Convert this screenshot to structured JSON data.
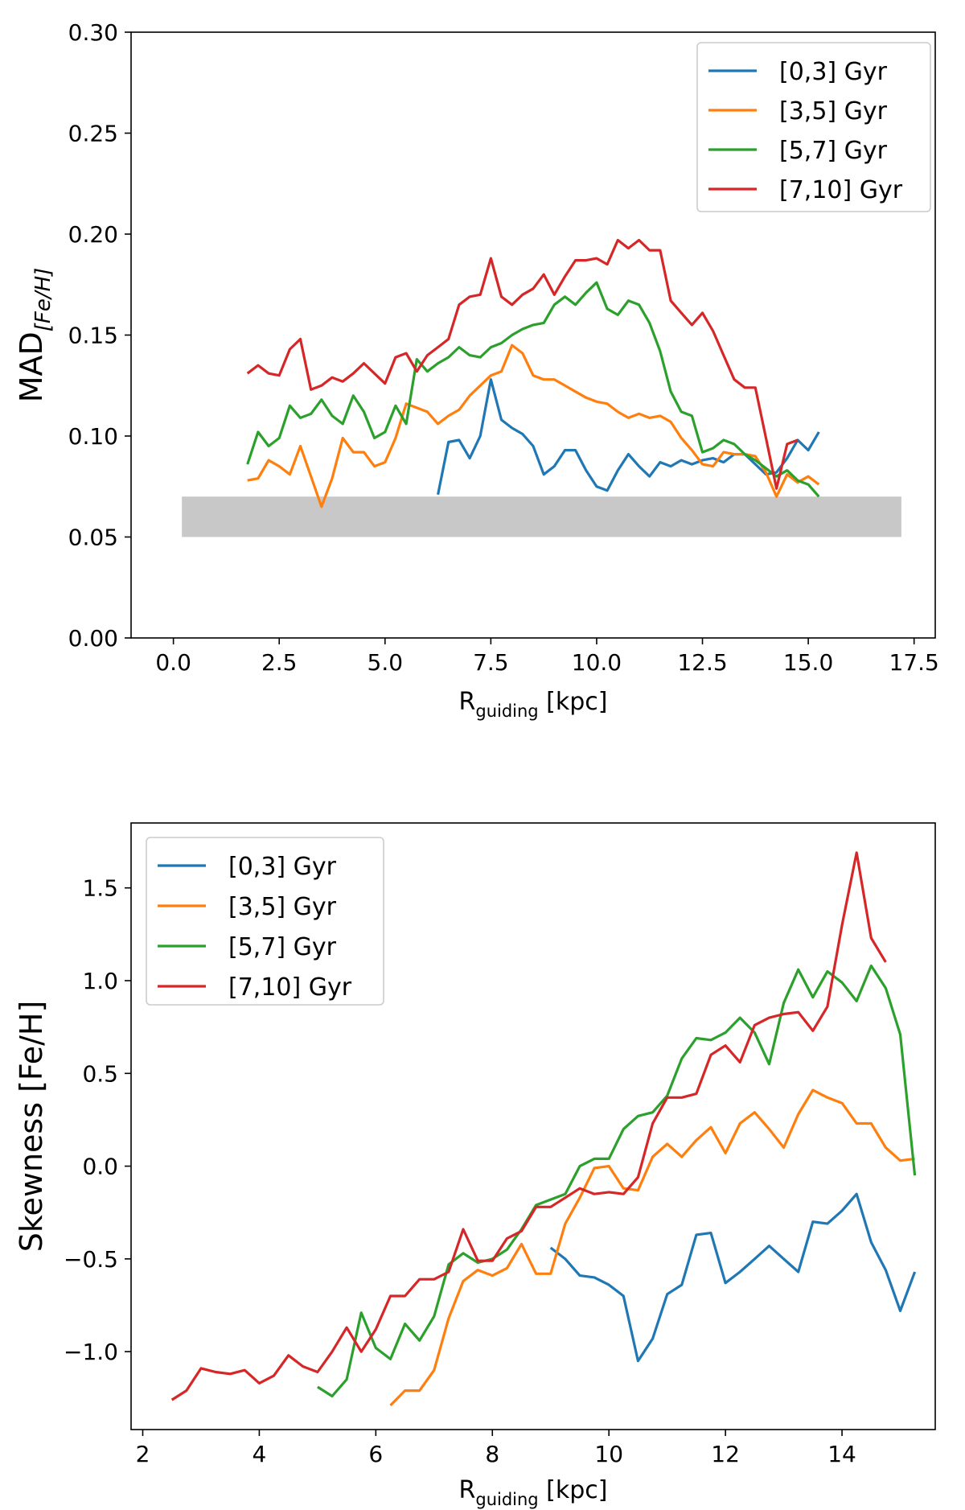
{
  "chart_data": [
    {
      "type": "line",
      "id": "mad",
      "xlabel": "R",
      "xlabel_sub": "guiding",
      "xlabel_suffix": " [kpc]",
      "ylabel": "MAD",
      "ylabel_sub": "[Fe/H]",
      "xlim": [
        -1.0,
        18.0
      ],
      "ylim": [
        0.0,
        0.3
      ],
      "xticks": [
        0.0,
        2.5,
        5.0,
        7.5,
        10.0,
        12.5,
        15.0,
        17.5
      ],
      "xtick_labels": [
        "0.0",
        "2.5",
        "5.0",
        "7.5",
        "10.0",
        "12.5",
        "15.0",
        "17.5"
      ],
      "yticks": [
        0.0,
        0.05,
        0.1,
        0.15,
        0.2,
        0.25,
        0.3
      ],
      "ytick_labels": [
        "0.00",
        "0.05",
        "0.10",
        "0.15",
        "0.20",
        "0.25",
        "0.30"
      ],
      "legend_position": "top-right",
      "band": {
        "x0": 0.2,
        "x1": 17.2,
        "y0": 0.05,
        "y1": 0.07,
        "color": "#c8c8c8"
      },
      "series": [
        {
          "name": "[0,3] Gyr",
          "color": "#1f77b4",
          "x": [
            6.25,
            6.5,
            6.75,
            7.0,
            7.25,
            7.5,
            7.75,
            8.0,
            8.25,
            8.5,
            8.75,
            9.0,
            9.25,
            9.5,
            9.75,
            10.0,
            10.25,
            10.5,
            10.75,
            11.0,
            11.25,
            11.5,
            11.75,
            12.0,
            12.25,
            12.5,
            12.75,
            13.0,
            13.25,
            13.5,
            13.75,
            14.0,
            14.25,
            14.5,
            14.75,
            15.0,
            15.25
          ],
          "y": [
            0.071,
            0.097,
            0.098,
            0.089,
            0.1,
            0.128,
            0.108,
            0.104,
            0.101,
            0.095,
            0.081,
            0.085,
            0.093,
            0.093,
            0.083,
            0.075,
            0.073,
            0.083,
            0.091,
            0.085,
            0.08,
            0.087,
            0.085,
            0.088,
            0.086,
            0.088,
            0.089,
            0.087,
            0.091,
            0.091,
            0.086,
            0.081,
            0.082,
            0.089,
            0.098,
            0.093,
            0.102
          ]
        },
        {
          "name": "[3,5] Gyr",
          "color": "#ff7f0e",
          "x": [
            1.75,
            2.0,
            2.25,
            2.5,
            2.75,
            3.0,
            3.25,
            3.5,
            3.75,
            4.0,
            4.25,
            4.5,
            4.75,
            5.0,
            5.25,
            5.5,
            5.75,
            6.0,
            6.25,
            6.5,
            6.75,
            7.0,
            7.25,
            7.5,
            7.75,
            8.0,
            8.25,
            8.5,
            8.75,
            9.0,
            9.25,
            9.5,
            9.75,
            10.0,
            10.25,
            10.5,
            10.75,
            11.0,
            11.25,
            11.5,
            11.75,
            12.0,
            12.25,
            12.5,
            12.75,
            13.0,
            13.25,
            13.5,
            13.75,
            14.0,
            14.25,
            14.5,
            14.75,
            15.0,
            15.25
          ],
          "y": [
            0.078,
            0.079,
            0.088,
            0.085,
            0.081,
            0.095,
            0.08,
            0.065,
            0.079,
            0.099,
            0.092,
            0.092,
            0.085,
            0.087,
            0.099,
            0.116,
            0.114,
            0.112,
            0.106,
            0.11,
            0.113,
            0.12,
            0.125,
            0.13,
            0.132,
            0.145,
            0.141,
            0.13,
            0.128,
            0.128,
            0.125,
            0.122,
            0.119,
            0.117,
            0.116,
            0.112,
            0.109,
            0.111,
            0.109,
            0.11,
            0.107,
            0.099,
            0.093,
            0.086,
            0.085,
            0.092,
            0.091,
            0.091,
            0.09,
            0.082,
            0.07,
            0.081,
            0.077,
            0.08,
            0.076
          ]
        },
        {
          "name": "[5,7] Gyr",
          "color": "#2ca02c",
          "x": [
            1.75,
            2.0,
            2.25,
            2.5,
            2.75,
            3.0,
            3.25,
            3.5,
            3.75,
            4.0,
            4.25,
            4.5,
            4.75,
            5.0,
            5.25,
            5.5,
            5.75,
            6.0,
            6.25,
            6.5,
            6.75,
            7.0,
            7.25,
            7.5,
            7.75,
            8.0,
            8.25,
            8.5,
            8.75,
            9.0,
            9.25,
            9.5,
            9.75,
            10.0,
            10.25,
            10.5,
            10.75,
            11.0,
            11.25,
            11.5,
            11.75,
            12.0,
            12.25,
            12.5,
            12.75,
            13.0,
            13.25,
            13.5,
            13.75,
            14.0,
            14.25,
            14.5,
            14.75,
            15.0,
            15.25
          ],
          "y": [
            0.086,
            0.102,
            0.095,
            0.099,
            0.115,
            0.109,
            0.111,
            0.118,
            0.11,
            0.106,
            0.12,
            0.112,
            0.099,
            0.102,
            0.115,
            0.106,
            0.138,
            0.132,
            0.136,
            0.139,
            0.144,
            0.14,
            0.139,
            0.144,
            0.146,
            0.15,
            0.153,
            0.155,
            0.156,
            0.165,
            0.169,
            0.165,
            0.171,
            0.176,
            0.163,
            0.16,
            0.167,
            0.165,
            0.156,
            0.142,
            0.122,
            0.112,
            0.11,
            0.092,
            0.094,
            0.098,
            0.096,
            0.091,
            0.088,
            0.084,
            0.08,
            0.083,
            0.078,
            0.076,
            0.07
          ]
        },
        {
          "name": "[7,10] Gyr",
          "color": "#d62728",
          "x": [
            1.75,
            2.0,
            2.25,
            2.5,
            2.75,
            3.0,
            3.25,
            3.5,
            3.75,
            4.0,
            4.25,
            4.5,
            4.75,
            5.0,
            5.25,
            5.5,
            5.75,
            6.0,
            6.25,
            6.5,
            6.75,
            7.0,
            7.25,
            7.5,
            7.75,
            8.0,
            8.25,
            8.5,
            8.75,
            9.0,
            9.25,
            9.5,
            9.75,
            10.0,
            10.25,
            10.5,
            10.75,
            11.0,
            11.25,
            11.5,
            11.75,
            12.0,
            12.25,
            12.5,
            12.75,
            13.0,
            13.25,
            13.5,
            13.75,
            14.0,
            14.25,
            14.5,
            14.75
          ],
          "y": [
            0.131,
            0.135,
            0.131,
            0.13,
            0.143,
            0.148,
            0.123,
            0.125,
            0.129,
            0.127,
            0.131,
            0.136,
            0.131,
            0.126,
            0.139,
            0.141,
            0.132,
            0.14,
            0.144,
            0.148,
            0.165,
            0.169,
            0.17,
            0.188,
            0.169,
            0.165,
            0.17,
            0.173,
            0.18,
            0.17,
            0.179,
            0.187,
            0.187,
            0.188,
            0.185,
            0.197,
            0.193,
            0.197,
            0.192,
            0.192,
            0.167,
            0.161,
            0.155,
            0.161,
            0.152,
            0.14,
            0.128,
            0.124,
            0.124,
            0.099,
            0.074,
            0.096,
            0.098
          ]
        }
      ]
    },
    {
      "type": "line",
      "id": "skewness",
      "xlabel": "R",
      "xlabel_sub": "guiding",
      "xlabel_suffix": " [kpc]",
      "ylabel": "Skewness [Fe/H]",
      "xlim": [
        1.8,
        15.6
      ],
      "ylim": [
        -1.42,
        1.85
      ],
      "xticks": [
        2,
        4,
        6,
        8,
        10,
        12,
        14
      ],
      "xtick_labels": [
        "2",
        "4",
        "6",
        "8",
        "10",
        "12",
        "14"
      ],
      "yticks": [
        -1.0,
        -0.5,
        0.0,
        0.5,
        1.0,
        1.5
      ],
      "ytick_labels": [
        "−1.0",
        "−0.5",
        "0.0",
        "0.5",
        "1.0",
        "1.5"
      ],
      "legend_position": "top-left",
      "series": [
        {
          "name": "[0,3] Gyr",
          "color": "#1f77b4",
          "x": [
            9.0,
            9.25,
            9.5,
            9.75,
            10.0,
            10.25,
            10.5,
            10.75,
            11.0,
            11.25,
            11.5,
            11.75,
            12.0,
            12.25,
            12.5,
            12.75,
            13.0,
            13.25,
            13.5,
            13.75,
            14.0,
            14.25,
            14.5,
            14.75,
            15.0,
            15.25
          ],
          "y": [
            -0.44,
            -0.5,
            -0.59,
            -0.6,
            -0.64,
            -0.7,
            -1.05,
            -0.93,
            -0.69,
            -0.64,
            -0.37,
            -0.36,
            -0.63,
            -0.57,
            -0.5,
            -0.43,
            -0.5,
            -0.57,
            -0.3,
            -0.31,
            -0.24,
            -0.15,
            -0.41,
            -0.56,
            -0.78,
            -0.57
          ]
        },
        {
          "name": "[3,5] Gyr",
          "color": "#ff7f0e",
          "x": [
            6.25,
            6.5,
            6.75,
            7.0,
            7.25,
            7.5,
            7.75,
            8.0,
            8.25,
            8.5,
            8.75,
            9.0,
            9.25,
            9.5,
            9.75,
            10.0,
            10.25,
            10.5,
            10.75,
            11.0,
            11.25,
            11.5,
            11.75,
            12.0,
            12.25,
            12.5,
            12.75,
            13.0,
            13.25,
            13.5,
            13.75,
            14.0,
            14.25,
            14.5,
            14.75,
            15.0,
            15.25
          ],
          "y": [
            -1.29,
            -1.21,
            -1.21,
            -1.1,
            -0.82,
            -0.62,
            -0.56,
            -0.59,
            -0.55,
            -0.42,
            -0.58,
            -0.58,
            -0.31,
            -0.17,
            -0.01,
            0.0,
            -0.12,
            -0.13,
            0.05,
            0.12,
            0.05,
            0.14,
            0.21,
            0.07,
            0.23,
            0.29,
            0.2,
            0.1,
            0.28,
            0.41,
            0.37,
            0.34,
            0.23,
            0.23,
            0.1,
            0.03,
            0.04
          ]
        },
        {
          "name": "[5,7] Gyr",
          "color": "#2ca02c",
          "x": [
            5.0,
            5.25,
            5.5,
            5.75,
            6.0,
            6.25,
            6.5,
            6.75,
            7.0,
            7.25,
            7.5,
            7.75,
            8.0,
            8.25,
            8.5,
            8.75,
            9.0,
            9.25,
            9.5,
            9.75,
            10.0,
            10.25,
            10.5,
            10.75,
            11.0,
            11.25,
            11.5,
            11.75,
            12.0,
            12.25,
            12.5,
            12.75,
            13.0,
            13.25,
            13.5,
            13.75,
            14.0,
            14.25,
            14.5,
            14.75,
            15.0,
            15.25
          ],
          "y": [
            -1.19,
            -1.24,
            -1.15,
            -0.79,
            -0.98,
            -1.04,
            -0.85,
            -0.94,
            -0.81,
            -0.53,
            -0.47,
            -0.52,
            -0.5,
            -0.45,
            -0.34,
            -0.21,
            -0.18,
            -0.15,
            0.0,
            0.04,
            0.04,
            0.2,
            0.27,
            0.29,
            0.38,
            0.58,
            0.69,
            0.68,
            0.72,
            0.8,
            0.72,
            0.55,
            0.88,
            1.06,
            0.91,
            1.05,
            0.99,
            0.89,
            1.08,
            0.96,
            0.71,
            -0.05
          ]
        },
        {
          "name": "[7,10] Gyr",
          "color": "#d62728",
          "x": [
            2.5,
            2.75,
            3.0,
            3.25,
            3.5,
            3.75,
            4.0,
            4.25,
            4.5,
            4.75,
            5.0,
            5.25,
            5.5,
            5.75,
            6.0,
            6.25,
            6.5,
            6.75,
            7.0,
            7.25,
            7.5,
            7.75,
            8.0,
            8.25,
            8.5,
            8.75,
            9.0,
            9.25,
            9.5,
            9.75,
            10.0,
            10.25,
            10.5,
            10.75,
            11.0,
            11.25,
            11.5,
            11.75,
            12.0,
            12.25,
            12.5,
            12.75,
            13.0,
            13.25,
            13.5,
            13.75,
            14.0,
            14.25,
            14.5,
            14.75
          ],
          "y": [
            -1.26,
            -1.21,
            -1.09,
            -1.11,
            -1.12,
            -1.1,
            -1.17,
            -1.13,
            -1.02,
            -1.08,
            -1.11,
            -1.0,
            -0.87,
            -1.0,
            -0.88,
            -0.7,
            -0.7,
            -0.61,
            -0.61,
            -0.57,
            -0.34,
            -0.51,
            -0.51,
            -0.39,
            -0.35,
            -0.22,
            -0.22,
            -0.17,
            -0.12,
            -0.15,
            -0.14,
            -0.15,
            -0.06,
            0.23,
            0.37,
            0.37,
            0.39,
            0.6,
            0.65,
            0.56,
            0.76,
            0.8,
            0.82,
            0.83,
            0.73,
            0.86,
            1.3,
            1.69,
            1.23,
            1.1
          ]
        }
      ]
    }
  ]
}
